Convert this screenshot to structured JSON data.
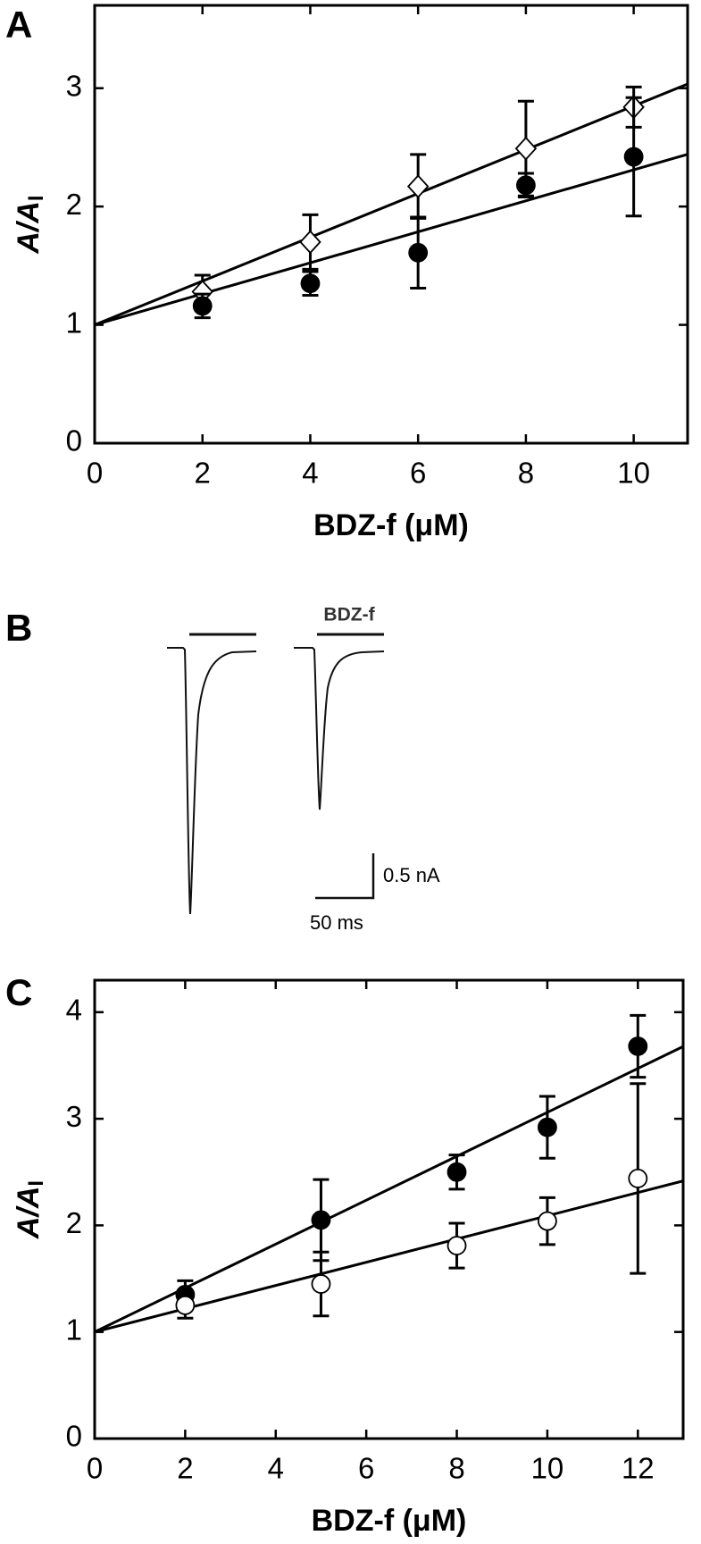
{
  "chart_data": [
    {
      "type": "scatter",
      "panel": "A",
      "xlabel": "BDZ-f (μM)",
      "ylabel": "A/A",
      "ylabel_subscript": "I",
      "x": [
        2,
        4,
        6,
        8,
        10
      ],
      "series": [
        {
          "marker": "diamond-open",
          "color": "#000000",
          "values": [
            1.28,
            1.7,
            2.17,
            2.49,
            2.84
          ],
          "errors": [
            0.14,
            0.23,
            0.27,
            0.4,
            0.17
          ],
          "fit": {
            "intercept": 1.0,
            "slope": 0.185
          }
        },
        {
          "marker": "circle-filled",
          "color": "#000000",
          "values": [
            1.16,
            1.35,
            1.61,
            2.18,
            2.42
          ],
          "errors": [
            0.1,
            0.1,
            0.3,
            0.1,
            0.5
          ],
          "fit": {
            "intercept": 1.0,
            "slope": 0.131
          }
        }
      ],
      "xlim": [
        0,
        11
      ],
      "ylim": [
        0,
        3.7
      ],
      "xticks": [
        0,
        2,
        4,
        6,
        8,
        10
      ],
      "yticks": [
        0,
        1,
        2,
        3
      ]
    },
    {
      "type": "trace",
      "panel": "B",
      "drug_label": "BDZ-f",
      "scale_y": "0.5 nA",
      "scale_x": "50 ms"
    },
    {
      "type": "scatter",
      "panel": "C",
      "xlabel": "BDZ-f (μM)",
      "ylabel": "A/A",
      "ylabel_subscript": "I",
      "x": [
        2,
        5,
        8,
        10,
        12
      ],
      "series": [
        {
          "marker": "circle-filled",
          "color": "#000000",
          "values": [
            1.35,
            2.05,
            2.5,
            2.92,
            3.68
          ],
          "errors": [
            0.13,
            0.38,
            0.16,
            0.29,
            0.29
          ],
          "fit": {
            "intercept": 1.0,
            "slope": 0.206
          }
        },
        {
          "marker": "circle-open",
          "color": "#000000",
          "values": [
            1.25,
            1.45,
            1.81,
            2.04,
            2.44
          ],
          "errors": [
            0.12,
            0.3,
            0.21,
            0.22,
            0.89
          ],
          "fit": {
            "intercept": 1.0,
            "slope": 0.109
          }
        }
      ],
      "xlim": [
        0,
        13
      ],
      "ylim": [
        0,
        4.3
      ],
      "xticks": [
        0,
        2,
        4,
        6,
        8,
        10,
        12
      ],
      "yticks": [
        0,
        1,
        2,
        3,
        4
      ]
    }
  ]
}
